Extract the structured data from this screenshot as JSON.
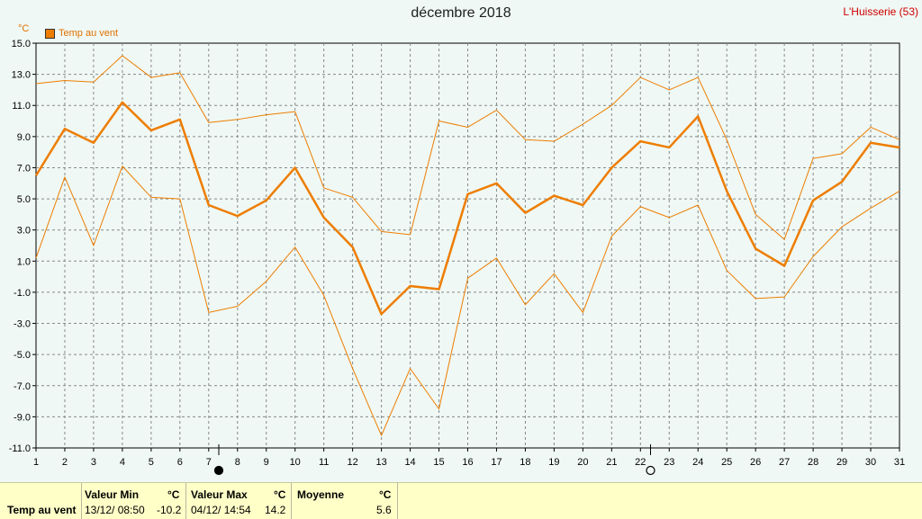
{
  "header": {
    "title": "décembre 2018",
    "station": "L'Huisserie (53)",
    "unit": "°C"
  },
  "legend": {
    "label": "Temp au vent",
    "color": "#ee7d00"
  },
  "chart_data": {
    "type": "line",
    "title": "décembre 2018",
    "ylabel": "°C",
    "xlabel": "",
    "x": [
      1,
      2,
      3,
      4,
      5,
      6,
      7,
      8,
      9,
      10,
      11,
      12,
      13,
      14,
      15,
      16,
      17,
      18,
      19,
      20,
      21,
      22,
      23,
      24,
      25,
      26,
      27,
      28,
      29,
      30,
      31
    ],
    "ylim": [
      -11.0,
      15.0
    ],
    "yticks": [
      "15.0",
      "13.0",
      "11.0",
      "9.0",
      "7.0",
      "5.0",
      "3.0",
      "1.0",
      "-1.0",
      "-3.0",
      "-5.0",
      "-7.0",
      "-9.0",
      "-11.0"
    ],
    "grid": true,
    "legend_position": "top-left",
    "series": [
      {
        "name": "Temp au vent",
        "role": "mean",
        "color": "#ee7d00",
        "values": [
          6.5,
          9.5,
          8.6,
          11.2,
          9.4,
          10.1,
          4.6,
          3.9,
          4.9,
          7.0,
          3.8,
          1.9,
          -2.4,
          -0.6,
          -0.8,
          5.3,
          6.0,
          4.1,
          5.2,
          4.6,
          7.0,
          8.7,
          8.3,
          10.3,
          5.5,
          1.8,
          0.7,
          4.9,
          6.1,
          8.6,
          8.3
        ]
      },
      {
        "role": "max",
        "color": "#ee7d00",
        "values": [
          12.4,
          12.6,
          12.5,
          14.2,
          12.8,
          13.1,
          9.9,
          10.1,
          10.4,
          10.6,
          5.7,
          5.1,
          2.9,
          2.7,
          10.0,
          9.6,
          10.7,
          8.8,
          8.7,
          9.8,
          11.0,
          12.8,
          12.0,
          12.8,
          8.8,
          4.0,
          2.4,
          7.6,
          7.9,
          9.6,
          8.8
        ]
      },
      {
        "role": "min",
        "color": "#ee7d00",
        "values": [
          1.2,
          6.4,
          2.0,
          7.1,
          5.1,
          5.0,
          -2.3,
          -1.9,
          -0.3,
          1.9,
          -1.2,
          -5.9,
          -10.2,
          -5.9,
          -8.5,
          -0.1,
          1.2,
          -1.8,
          0.2,
          -2.3,
          2.6,
          4.5,
          3.8,
          4.6,
          0.4,
          -1.4,
          -1.3,
          1.3,
          3.2,
          4.4,
          5.5
        ]
      }
    ],
    "moon_phases": [
      {
        "day": 7,
        "phase": "new"
      },
      {
        "day": 22,
        "phase": "full"
      }
    ]
  },
  "stats": {
    "row_label": "Temp au vent",
    "min_label": "Valeur Min",
    "min_unit": "°C",
    "min_date": "13/12/  08:50",
    "min_value": "-10.2",
    "max_label": "Valeur Max",
    "max_unit": "°C",
    "max_date": "04/12/  14:54",
    "max_value": "14.2",
    "avg_label": "Moyenne",
    "avg_unit": "°C",
    "avg_value": "5.6"
  }
}
